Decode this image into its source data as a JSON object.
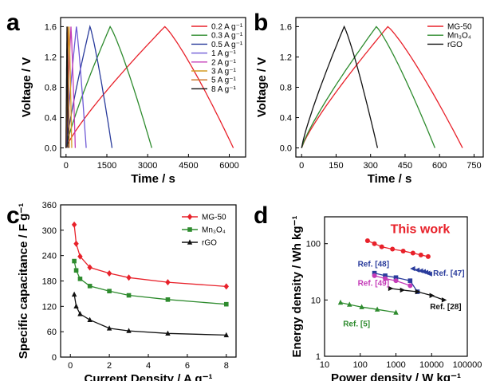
{
  "figure": {
    "panel_letters": [
      "a",
      "b",
      "c",
      "d"
    ]
  },
  "chart_data": [
    {
      "panel": "a",
      "type": "line",
      "xlabel": "Time / s",
      "ylabel": "Voltage / V",
      "xlim": [
        -200,
        6600
      ],
      "ylim": [
        -0.12,
        1.72
      ],
      "xticks": [
        0,
        1500,
        3000,
        4500,
        6000
      ],
      "yticks": [
        0.0,
        0.4,
        0.8,
        1.2,
        1.6
      ],
      "legend_position": "top-right",
      "series": [
        {
          "name": "0.2 A g⁻¹",
          "color": "#e8212a",
          "x": [
            0,
            3630,
            6150
          ],
          "y": [
            0,
            1.6,
            0
          ]
        },
        {
          "name": "0.3 A g⁻¹",
          "color": "#2e8b2e",
          "x": [
            0,
            1620,
            3150
          ],
          "y": [
            0,
            1.6,
            0
          ]
        },
        {
          "name": "0.5 A g⁻¹",
          "color": "#2a3c9c",
          "x": [
            0,
            880,
            1690
          ],
          "y": [
            0,
            1.6,
            0
          ]
        },
        {
          "name": "1 A g⁻¹",
          "color": "#6f5ad6",
          "x": [
            0,
            380,
            740
          ],
          "y": [
            0,
            1.6,
            0
          ]
        },
        {
          "name": "2 A g⁻¹",
          "color": "#c43bb8",
          "x": [
            0,
            180,
            340
          ],
          "y": [
            0,
            1.6,
            0
          ]
        },
        {
          "name": "3 A g⁻¹",
          "color": "#d49b24",
          "x": [
            0,
            110,
            210
          ],
          "y": [
            0,
            1.6,
            0
          ]
        },
        {
          "name": "5 A g⁻¹",
          "color": "#c86e1f",
          "x": [
            0,
            62,
            120
          ],
          "y": [
            0,
            1.6,
            0
          ]
        },
        {
          "name": "8 A g⁻¹",
          "color": "#111111",
          "x": [
            0,
            35,
            68
          ],
          "y": [
            0,
            1.6,
            0
          ]
        }
      ]
    },
    {
      "panel": "b",
      "type": "line",
      "xlabel": "Time / s",
      "ylabel": "Voltage / V",
      "xlim": [
        -25,
        790
      ],
      "ylim": [
        -0.12,
        1.72
      ],
      "xticks": [
        0,
        150,
        300,
        450,
        600,
        750
      ],
      "yticks": [
        0.0,
        0.4,
        0.8,
        1.2,
        1.6
      ],
      "legend_position": "top-right",
      "series": [
        {
          "name": "MG-50",
          "color": "#e8212a",
          "x": [
            0,
            375,
            700
          ],
          "y": [
            0,
            1.6,
            0
          ]
        },
        {
          "name": "Mn₃O₄",
          "color": "#2e8b2e",
          "x": [
            0,
            325,
            580
          ],
          "y": [
            0,
            1.6,
            0
          ]
        },
        {
          "name": "rGO",
          "color": "#111111",
          "x": [
            0,
            185,
            330
          ],
          "y": [
            0,
            1.6,
            0
          ]
        }
      ]
    },
    {
      "panel": "c",
      "type": "line",
      "xlabel": "Current Density / A g⁻¹",
      "ylabel": "Specific capacitance / F g⁻¹",
      "xlim": [
        -0.5,
        8.5
      ],
      "ylim": [
        0,
        360
      ],
      "xticks": [
        0,
        2,
        4,
        6,
        8
      ],
      "yticks": [
        0,
        60,
        120,
        180,
        240,
        300,
        360
      ],
      "legend_position": "top-right",
      "series": [
        {
          "name": "MG-50",
          "color": "#e8212a",
          "marker": "diamond",
          "x": [
            0.2,
            0.3,
            0.5,
            1,
            2,
            3,
            5,
            8
          ],
          "y": [
            313,
            268,
            238,
            212,
            198,
            188,
            177,
            167
          ]
        },
        {
          "name": "Mn₃O₄",
          "color": "#2e8b2e",
          "marker": "square",
          "x": [
            0.2,
            0.3,
            0.5,
            1,
            2,
            3,
            5,
            8
          ],
          "y": [
            227,
            205,
            185,
            168,
            156,
            146,
            136,
            125
          ]
        },
        {
          "name": "rGO",
          "color": "#111111",
          "marker": "triangle",
          "x": [
            0.2,
            0.3,
            0.5,
            1,
            2,
            3,
            5,
            8
          ],
          "y": [
            148,
            120,
            102,
            88,
            68,
            62,
            56,
            52
          ]
        }
      ]
    },
    {
      "panel": "d",
      "type": "scatter",
      "xlabel": "Power density / W kg⁻¹",
      "ylabel": "Energy density / Wh kg⁻¹",
      "xscale": "log",
      "yscale": "log",
      "xlim": [
        10,
        100000
      ],
      "ylim": [
        1,
        300
      ],
      "xticks": [
        10,
        100,
        1000,
        10000,
        100000
      ],
      "xticklabels": [
        "10",
        "100",
        "1000",
        "10000",
        "100000"
      ],
      "yticks": [
        1,
        10,
        100
      ],
      "yticklabels": [
        "1",
        "10",
        "100"
      ],
      "series": [
        {
          "name": "This work",
          "color": "#e8212a",
          "marker": "circle",
          "x": [
            160,
            250,
            400,
            800,
            1600,
            3000,
            5000,
            8000
          ],
          "y": [
            113,
            100,
            88,
            80,
            74,
            68,
            63,
            59
          ],
          "label_x": 700,
          "label_y": 155,
          "label_big": true
        },
        {
          "name": "Ref. [48]",
          "color": "#2a3c9c",
          "marker": "square",
          "x": [
            250,
            500,
            1000,
            2500,
            4000
          ],
          "y": [
            30,
            27,
            25,
            22,
            14
          ],
          "label_x": 85,
          "label_y": 39
        },
        {
          "name": "Ref. [49]",
          "color": "#c43bb8",
          "marker": "circle",
          "x": [
            250,
            500,
            1000,
            2500
          ],
          "y": [
            27,
            24,
            22,
            18
          ],
          "label_x": 85,
          "label_y": 18
        },
        {
          "name": "Ref. [47]",
          "color": "#2a3c9c",
          "marker": "triangle-left",
          "x": [
            3000,
            4000,
            5000,
            6000,
            7000,
            8000,
            9000
          ],
          "y": [
            36,
            34,
            33,
            32,
            31,
            30,
            29
          ],
          "label_x": 11000,
          "label_y": 27
        },
        {
          "name": "Ref. [28]",
          "color": "#111111",
          "marker": "triangle-right",
          "x": [
            700,
            1500,
            4000,
            10000,
            22000
          ],
          "y": [
            16,
            15,
            14,
            12,
            10
          ],
          "label_x": 9000,
          "label_y": 6.8
        },
        {
          "name": "Ref. [5]",
          "color": "#2e8b2e",
          "marker": "triangle",
          "x": [
            28,
            50,
            110,
            300,
            1000
          ],
          "y": [
            9,
            8.3,
            7.5,
            6.8,
            6
          ],
          "label_x": 33,
          "label_y": 3.4
        }
      ]
    }
  ]
}
